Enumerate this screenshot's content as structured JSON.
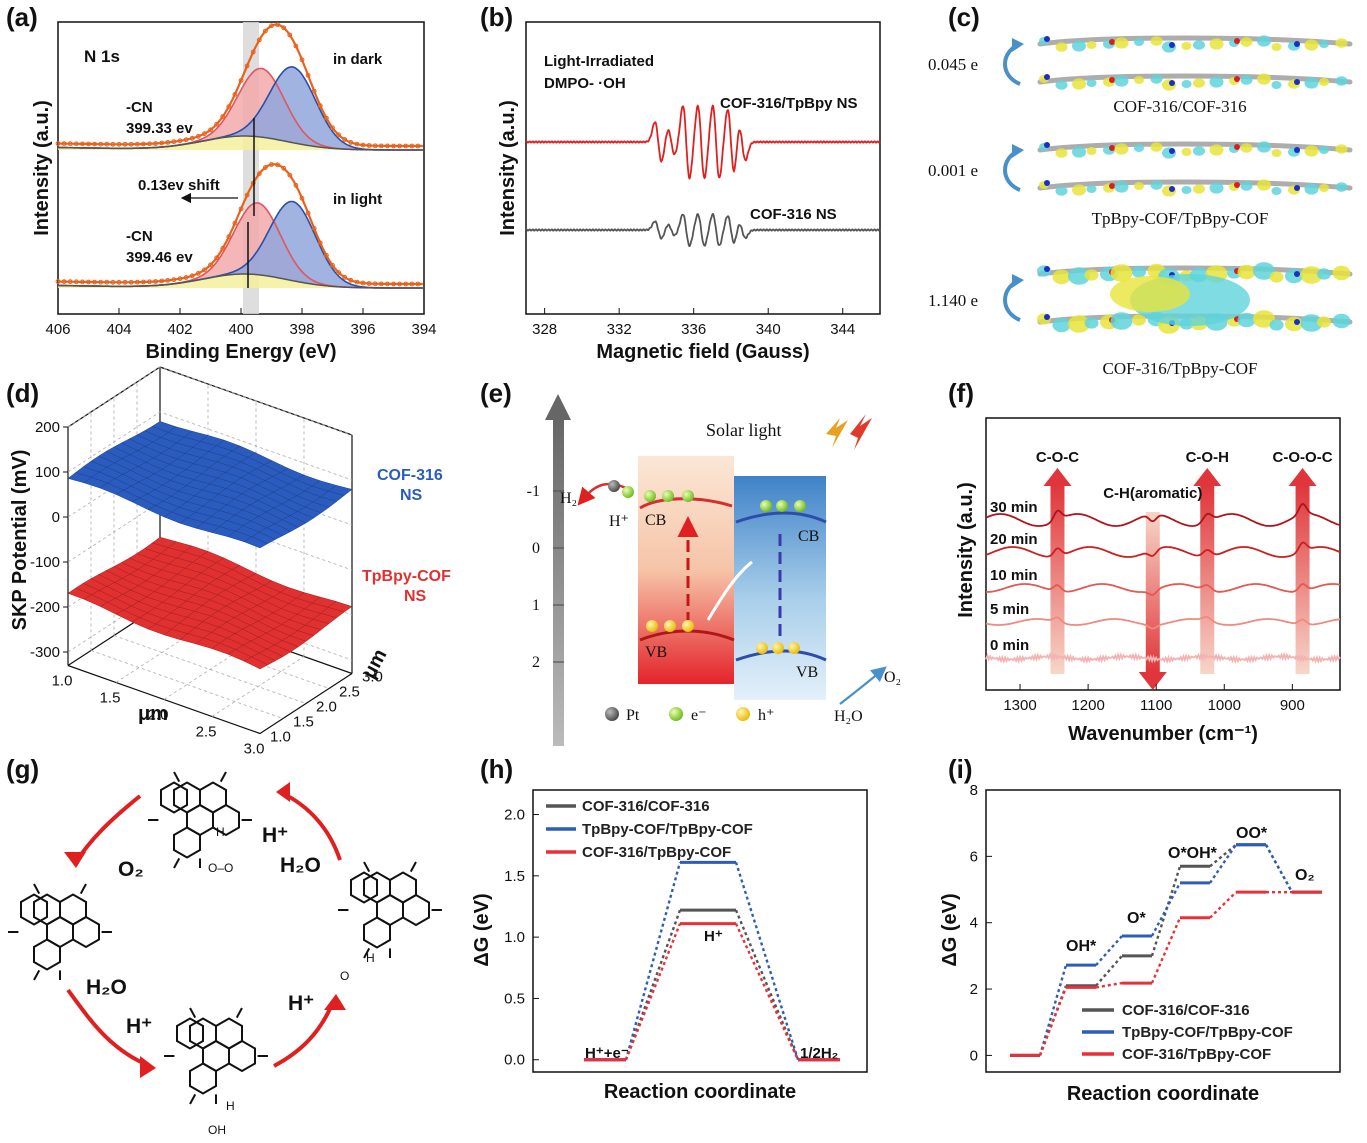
{
  "panels": {
    "a": {
      "label": "(a)",
      "title": "N 1s",
      "cond_dark": "in dark",
      "cond_light": "in light",
      "cn_dark_1": "-CN",
      "cn_dark_2": "399.33 ev",
      "cn_light_1": "-CN",
      "cn_light_2": "399.46 ev",
      "shift": "0.13ev shift"
    },
    "b": {
      "label": "(b)",
      "title1": "Light-Irradiated",
      "title2": "DMPO- ·OH",
      "s1": "COF-316/TpBpy NS",
      "s2": "COF-316 NS"
    },
    "c": {
      "label": "(c)",
      "rows": [
        {
          "value": "0.045 e",
          "name": "COF-316/COF-316"
        },
        {
          "value": "0.001 e",
          "name": "TpBpy-COF/TpBpy-COF"
        },
        {
          "value": "1.140 e",
          "name": "COF-316/TpBpy-COF"
        }
      ]
    },
    "d": {
      "label": "(d)",
      "top_1": "COF-316",
      "top_2": "NS",
      "bot_1": "TpBpy-COF",
      "bot_2": "NS"
    },
    "e": {
      "label": "(e)",
      "solar": "Solar light",
      "cb": "CB",
      "vb": "VB",
      "h2": "H₂",
      "hplus": "H⁺",
      "o2": "O₂",
      "h2o": "H₂O",
      "pt": "Pt",
      "eminus": "e⁻",
      "hplus_legend": "h⁺",
      "axis_ticks": [
        "-1",
        "0",
        "1",
        "2"
      ]
    },
    "f": {
      "label": "(f)",
      "times": [
        "30 min",
        "20 min",
        "10 min",
        "5 min",
        "0 min"
      ],
      "arrows": [
        "C-O-C",
        "C-O-H",
        "C-O-O-C",
        "C-H(aromatic)"
      ]
    },
    "g": {
      "label": "(g)",
      "o2": "O₂",
      "hplus1": "H⁺",
      "h2o1": "H₂O",
      "h2o2": "H₂O",
      "hplus2": "H⁺",
      "hplus3": "H⁺",
      "h1": "H",
      "oo": "O–O",
      "h2": "H",
      "h3": "H",
      "oh": "OH",
      "o_atom": "O"
    },
    "h": {
      "label": "(h)",
      "level_label": "H⁺",
      "start": "H⁺+e⁻",
      "end": "1/2H₂"
    },
    "i": {
      "label": "(i)",
      "oh": "OH*",
      "o": "O*",
      "ooh": "O*OH*",
      "oo": "OO*",
      "o2": "O₂"
    }
  },
  "chart_data": [
    {
      "panel": "a",
      "type": "line",
      "title": "N 1s",
      "xlabel": "Binding Energy (eV)",
      "ylabel": "Intensity (a.u.)",
      "xlim": [
        406,
        394
      ],
      "x_ticks": [
        406,
        404,
        402,
        400,
        398,
        396,
        394
      ],
      "highlight_band": [
        399.6,
        399.2
      ],
      "series": [
        {
          "name": "in dark",
          "peaks": [
            {
              "center": 399.33,
              "label": "-CN"
            },
            {
              "center": 398.3
            }
          ]
        },
        {
          "name": "in light",
          "peaks": [
            {
              "center": 399.46,
              "label": "-CN"
            },
            {
              "center": 398.3
            }
          ]
        }
      ]
    },
    {
      "panel": "b",
      "type": "line",
      "xlabel": "Magnetic field (Gauss)",
      "ylabel": "Intensity (a.u.)",
      "xlim": [
        327,
        346
      ],
      "x_ticks": [
        328,
        332,
        336,
        340,
        344
      ],
      "series": [
        {
          "name": "COF-316/TpBpy NS",
          "color": "#e02020",
          "line_positions": [
            334.1,
            334.8,
            335.6,
            336.4,
            337.2,
            338.0,
            338.6
          ]
        },
        {
          "name": "COF-316 NS",
          "color": "#555555",
          "line_positions": [
            334.1,
            334.8,
            335.6,
            336.4,
            337.2,
            338.0,
            338.6
          ]
        }
      ]
    },
    {
      "panel": "d",
      "type": "area",
      "xlabel": "μm",
      "ylabel": "SKP Potential (mV)",
      "x_ticks": [
        1.0,
        1.5,
        2.0,
        2.5,
        3.0
      ],
      "y_ticks": [
        1.0,
        1.5,
        2.0,
        2.5,
        3.0
      ],
      "z_ticks": [
        200,
        100,
        0,
        -100,
        -200,
        -300
      ],
      "series": [
        {
          "name": "COF-316 NS",
          "color": "#2a5cc0",
          "mean": 85
        },
        {
          "name": "TpBpy-COF NS",
          "color": "#e03030",
          "mean": -175
        }
      ]
    },
    {
      "panel": "f",
      "type": "line",
      "xlabel": "Wavenumber (cm⁻¹)",
      "ylabel": "Intensity (a.u.)",
      "xlim": [
        1350,
        830
      ],
      "x_ticks": [
        1300,
        1200,
        1100,
        1000,
        900
      ],
      "series": [
        {
          "name": "30 min",
          "color": "#b0141b"
        },
        {
          "name": "20 min",
          "color": "#c8201f"
        },
        {
          "name": "10 min",
          "color": "#e05a50"
        },
        {
          "name": "5 min",
          "color": "#ee8a80"
        },
        {
          "name": "0 min",
          "color": "#f3b3b3"
        }
      ],
      "annotations": [
        {
          "label": "C-O-C",
          "x": 1245
        },
        {
          "label": "C-O-H",
          "x": 1025
        },
        {
          "label": "C-O-O-C",
          "x": 885
        },
        {
          "label": "C-H(aromatic)",
          "x": 1105
        }
      ]
    },
    {
      "panel": "h",
      "type": "line",
      "xlabel": "Reaction coordinate",
      "ylabel": "ΔG (eV)",
      "ylim": [
        -0.1,
        2.2
      ],
      "y_ticks": [
        0.0,
        0.5,
        1.0,
        1.5,
        2.0
      ],
      "categories": [
        "H⁺+e⁻",
        "H⁺",
        "1/2H₂"
      ],
      "series": [
        {
          "name": "COF-316/COF-316",
          "color": "#555555",
          "values": [
            0,
            1.22,
            0
          ]
        },
        {
          "name": "TpBpy-COF/TpBpy-COF",
          "color": "#2c5db8",
          "values": [
            0,
            1.61,
            0
          ]
        },
        {
          "name": "COF-316/TpBpy-COF",
          "color": "#e8303a",
          "values": [
            0,
            1.11,
            0
          ]
        }
      ]
    },
    {
      "panel": "i",
      "type": "line",
      "xlabel": "Reaction coordinate",
      "ylabel": "ΔG (eV)",
      "ylim": [
        -0.5,
        8
      ],
      "y_ticks": [
        0,
        2,
        4,
        6,
        8
      ],
      "categories": [
        "",
        "OH*",
        "O*",
        "O*OH*",
        "OO*",
        "O₂"
      ],
      "series": [
        {
          "name": "COF-316/COF-316",
          "color": "#555555",
          "values": [
            0,
            2.1,
            3.0,
            5.7,
            6.35,
            4.92
          ]
        },
        {
          "name": "TpBpy-COF/TpBpy-COF",
          "color": "#2c5db8",
          "values": [
            0,
            2.72,
            3.6,
            5.2,
            6.35,
            4.92
          ]
        },
        {
          "name": "COF-316/TpBpy-COF",
          "color": "#e8303a",
          "values": [
            0,
            2.05,
            2.18,
            4.15,
            4.92,
            4.92
          ]
        }
      ]
    }
  ]
}
